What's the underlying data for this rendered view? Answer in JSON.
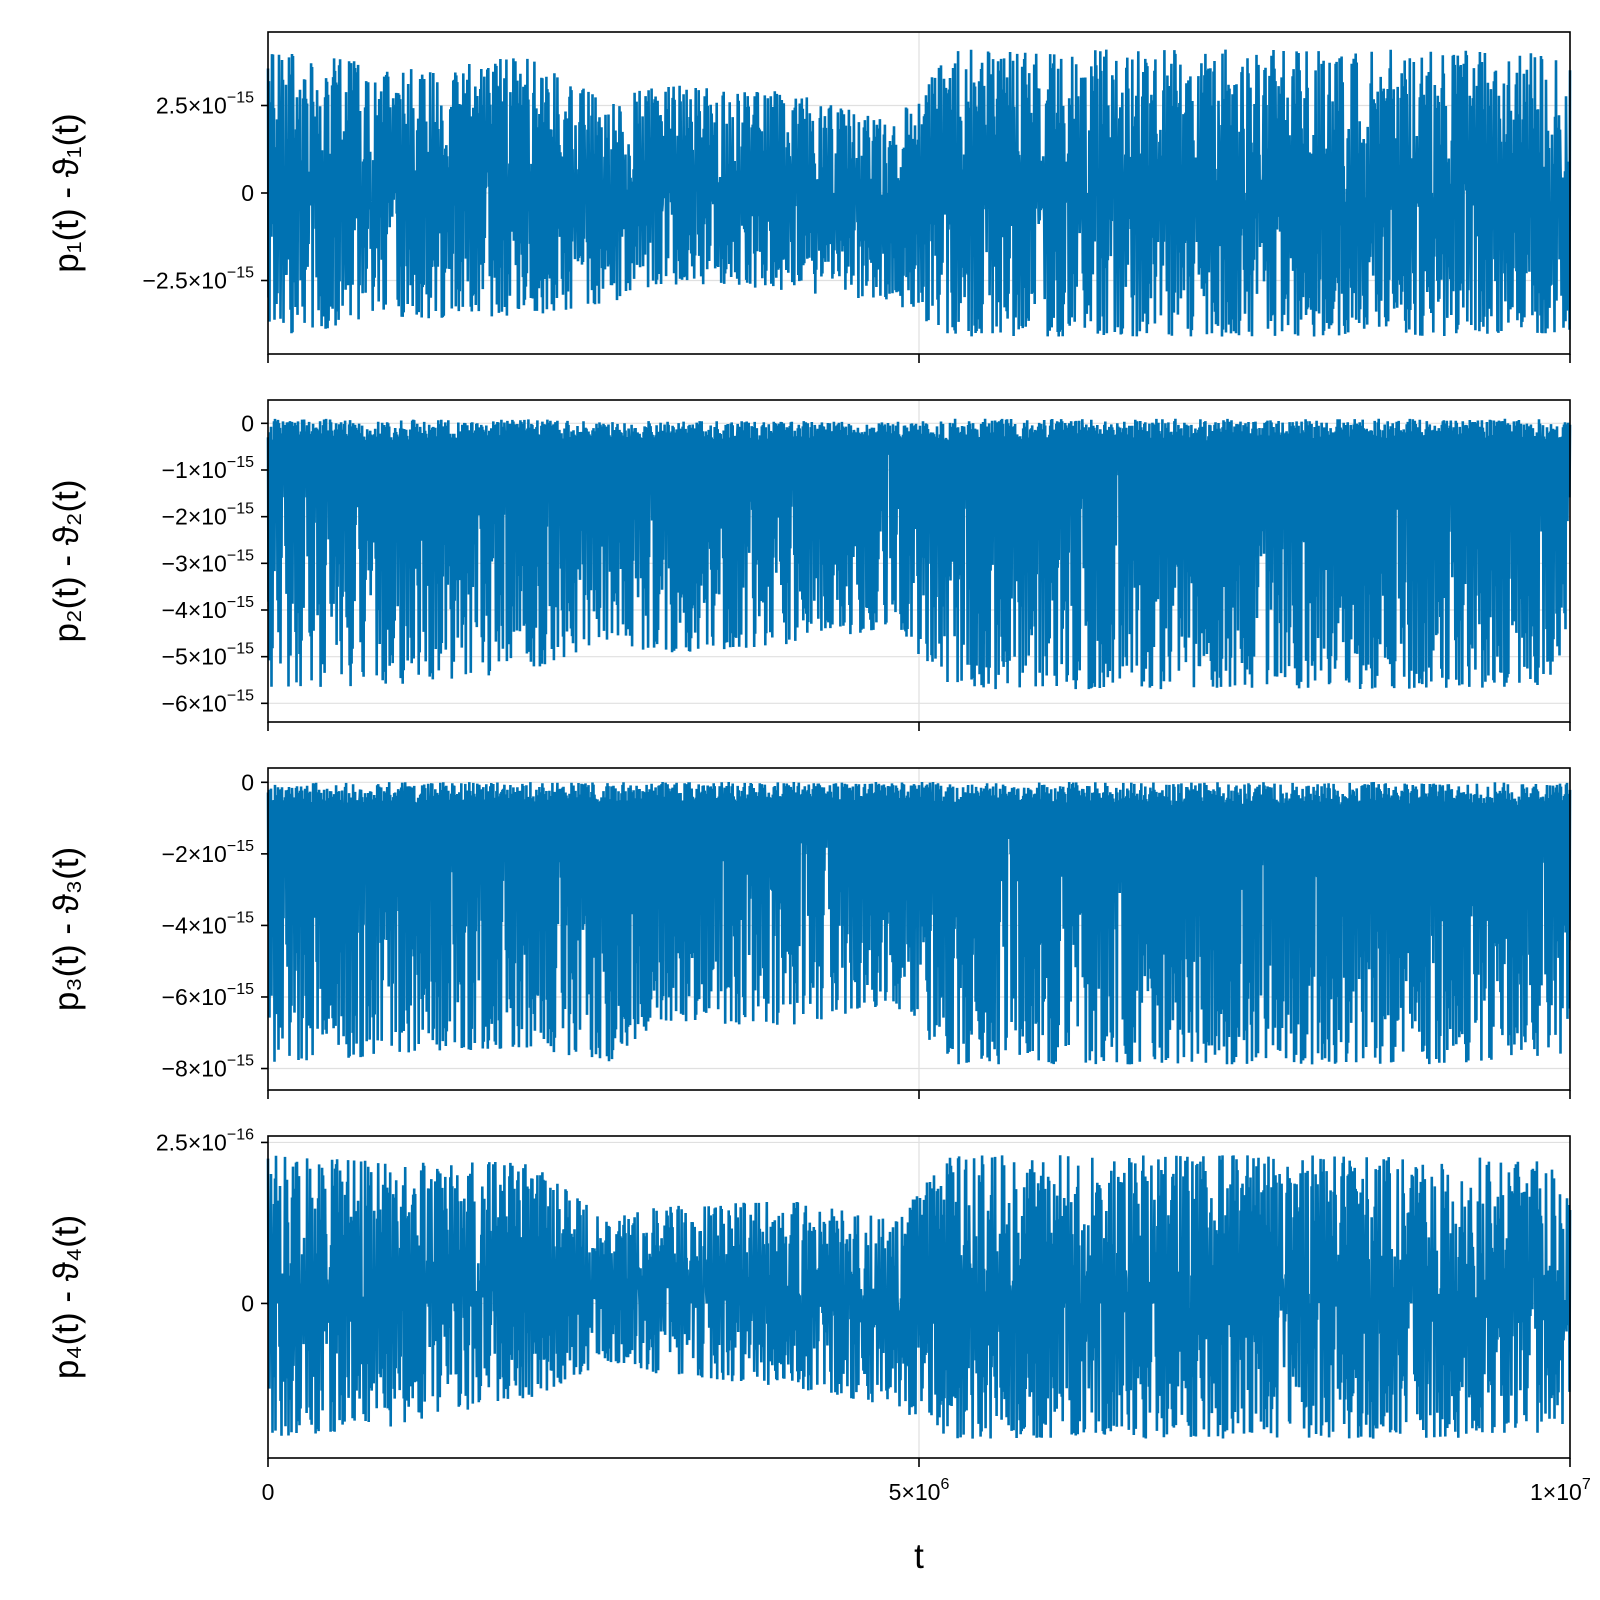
{
  "colors": {
    "series": "#0072b2",
    "grid": "#e0e0e0",
    "frame": "#000000"
  },
  "chart_data": [
    {
      "type": "line",
      "ylabel": "p₁(t) - ϑ₁(t)",
      "xlabel": "",
      "xlim": [
        0,
        10000000
      ],
      "ylim": [
        -4.6e-15,
        4.6e-15
      ],
      "xticks": [
        0,
        5000000,
        10000000
      ],
      "yticks": [
        {
          "value": 2.5e-15,
          "mant": "2.5×10",
          "exp": "−15"
        },
        {
          "value": 0,
          "mant": "0",
          "exp": ""
        },
        {
          "value": -2.5e-15,
          "mant": "−2.5×10",
          "exp": "−15"
        }
      ],
      "grid": true,
      "envelope": {
        "x": [
          0,
          1000000,
          2000000,
          2600000,
          3000000,
          4000000,
          4800000,
          5250000,
          6000000,
          7000000,
          8000000,
          9000000,
          10000000
        ],
        "upper": [
          4.1e-15,
          3.6e-15,
          3.9e-15,
          2.6e-15,
          3.1e-15,
          2.9e-15,
          2e-15,
          4.1e-15,
          4.1e-15,
          4.1e-15,
          4.1e-15,
          4.1e-15,
          4e-15
        ],
        "lower": [
          -4.1e-15,
          -3.6e-15,
          -3.5e-15,
          -3.2e-15,
          -2.6e-15,
          -2.8e-15,
          -3.1e-15,
          -4.1e-15,
          -4.1e-15,
          -4.1e-15,
          -4.1e-15,
          -4.1e-15,
          -4e-15
        ]
      }
    },
    {
      "type": "line",
      "ylabel": "p₂(t) - ϑ₂(t)",
      "xlabel": "",
      "xlim": [
        0,
        10000000
      ],
      "ylim": [
        -6.4e-15,
        5e-16
      ],
      "xticks": [
        0,
        5000000,
        10000000
      ],
      "yticks": [
        {
          "value": 0,
          "mant": "0",
          "exp": ""
        },
        {
          "value": -1e-15,
          "mant": "−1×10",
          "exp": "−15"
        },
        {
          "value": -2e-15,
          "mant": "−2×10",
          "exp": "−15"
        },
        {
          "value": -3e-15,
          "mant": "−3×10",
          "exp": "−15"
        },
        {
          "value": -4e-15,
          "mant": "−4×10",
          "exp": "−15"
        },
        {
          "value": -5e-15,
          "mant": "−5×10",
          "exp": "−15"
        },
        {
          "value": -6e-15,
          "mant": "−6×10",
          "exp": "−15"
        }
      ],
      "grid": true,
      "envelope": {
        "x": [
          0,
          1000000,
          2000000,
          2600000,
          3000000,
          4000000,
          4800000,
          5250000,
          6000000,
          7000000,
          8000000,
          9000000,
          10000000
        ],
        "upper": [
          1e-16,
          1e-16,
          1e-16,
          5e-17,
          5e-17,
          5e-17,
          5e-17,
          1e-16,
          1e-16,
          1e-16,
          1e-16,
          1e-16,
          1e-16
        ],
        "lower": [
          -6e-15,
          -5.9e-15,
          -5.6e-15,
          -4.9e-15,
          -5.2e-15,
          -5e-15,
          -4.6e-15,
          -6e-15,
          -6e-15,
          -6e-15,
          -6e-15,
          -6e-15,
          -5.9e-15
        ]
      }
    },
    {
      "type": "line",
      "ylabel": "p₃(t) - ϑ₃(t)",
      "xlabel": "",
      "xlim": [
        0,
        10000000
      ],
      "ylim": [
        -8.6e-15,
        4e-16
      ],
      "xticks": [
        0,
        5000000,
        10000000
      ],
      "yticks": [
        {
          "value": 0,
          "mant": "0",
          "exp": ""
        },
        {
          "value": -2e-15,
          "mant": "−2×10",
          "exp": "−15"
        },
        {
          "value": -4e-15,
          "mant": "−4×10",
          "exp": "−15"
        },
        {
          "value": -6e-15,
          "mant": "−6×10",
          "exp": "−15"
        },
        {
          "value": -8e-15,
          "mant": "−8×10",
          "exp": "−15"
        }
      ],
      "grid": true,
      "envelope": {
        "x": [
          0,
          1000000,
          2000000,
          2600000,
          3000000,
          4000000,
          4800000,
          5250000,
          6000000,
          7000000,
          8000000,
          9000000,
          10000000
        ],
        "upper": [
          1e-17,
          1e-17,
          1e-17,
          1e-17,
          1e-17,
          1e-17,
          1e-17,
          1e-17,
          1e-17,
          1e-17,
          1e-17,
          1e-17,
          1e-17
        ],
        "lower": [
          -8.3e-15,
          -8e-15,
          -7.8e-15,
          -8.3e-15,
          -7e-15,
          -7.2e-15,
          -6.5e-15,
          -8.3e-15,
          -8.3e-15,
          -8.3e-15,
          -8.3e-15,
          -8.3e-15,
          -8e-15
        ]
      }
    },
    {
      "type": "line",
      "ylabel": "p₄(t) - ϑ₄(t)",
      "xlabel": "t",
      "xlim": [
        0,
        10000000
      ],
      "ylim": [
        -2.4e-16,
        2.6e-16
      ],
      "xticks": [
        0,
        5000000,
        10000000
      ],
      "xtick_labels": [
        {
          "mant": "0",
          "exp": ""
        },
        {
          "mant": "5×10",
          "exp": "6"
        },
        {
          "mant": "1×10",
          "exp": "7"
        }
      ],
      "yticks": [
        {
          "value": 2.5e-16,
          "mant": "2.5×10",
          "exp": "−16"
        },
        {
          "value": 0,
          "mant": "0",
          "exp": ""
        }
      ],
      "grid": true,
      "envelope": {
        "x": [
          0,
          1000000,
          2000000,
          2600000,
          3000000,
          4000000,
          4800000,
          5250000,
          6000000,
          7000000,
          8000000,
          9000000,
          10000000
        ],
        "upper": [
          2.3e-16,
          2.2e-16,
          2.2e-16,
          1.3e-16,
          1.5e-16,
          1.6e-16,
          1.3e-16,
          2.3e-16,
          2.3e-16,
          2.3e-16,
          2.3e-16,
          2.3e-16,
          2.2e-16
        ],
        "lower": [
          -2.1e-16,
          -1.9e-16,
          -1.5e-16,
          -9e-17,
          -1.1e-16,
          -1.3e-16,
          -1.6e-16,
          -2.1e-16,
          -2.1e-16,
          -2.1e-16,
          -2.1e-16,
          -2.1e-16,
          -2e-16
        ]
      }
    }
  ]
}
